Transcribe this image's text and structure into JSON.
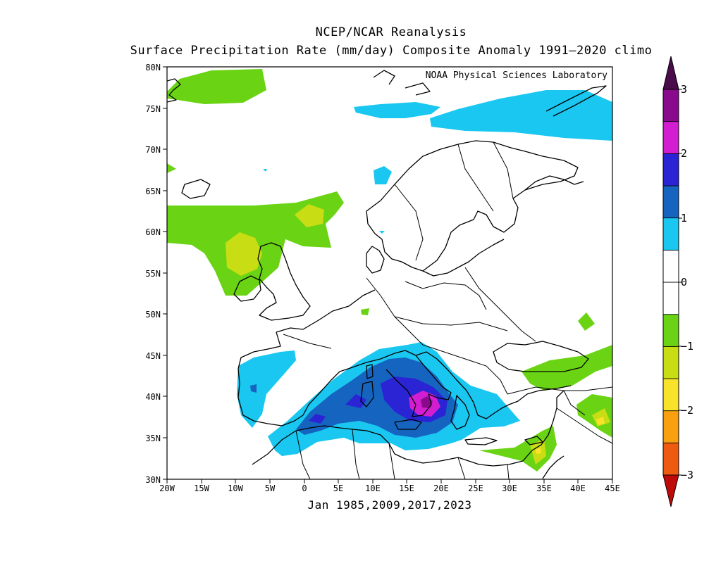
{
  "title": "NCEP/NCAR Reanalysis",
  "subtitle": "Surface Precipitation Rate (mm/day) Composite Anomaly 1991—2020 climo",
  "credit": "NOAA Physical Sciences Laboratory",
  "footer": "Jan 1985,2009,2017,2023",
  "lat_labels": [
    "80N",
    "75N",
    "70N",
    "65N",
    "60N",
    "55N",
    "50N",
    "45N",
    "40N",
    "35N",
    "30N"
  ],
  "lon_labels": [
    "20W",
    "15W",
    "10W",
    "5W",
    "0",
    "5E",
    "10E",
    "15E",
    "20E",
    "25E",
    "30E",
    "35E",
    "40E",
    "45E"
  ],
  "colorbar": {
    "tick_labels": [
      "3",
      "2",
      "1",
      "0",
      "−1",
      "−2",
      "−3"
    ],
    "colors": [
      "#c00a0a",
      "#ee5a10",
      "#f8a010",
      "#f8e22a",
      "#c9dd14",
      "#6ad414",
      "#ffffff",
      "#ffffff",
      "#1ac7f0",
      "#1565c0",
      "#2a24d4",
      "#d21ed0",
      "#8a0a8e",
      "#4a0c4a"
    ]
  }
}
